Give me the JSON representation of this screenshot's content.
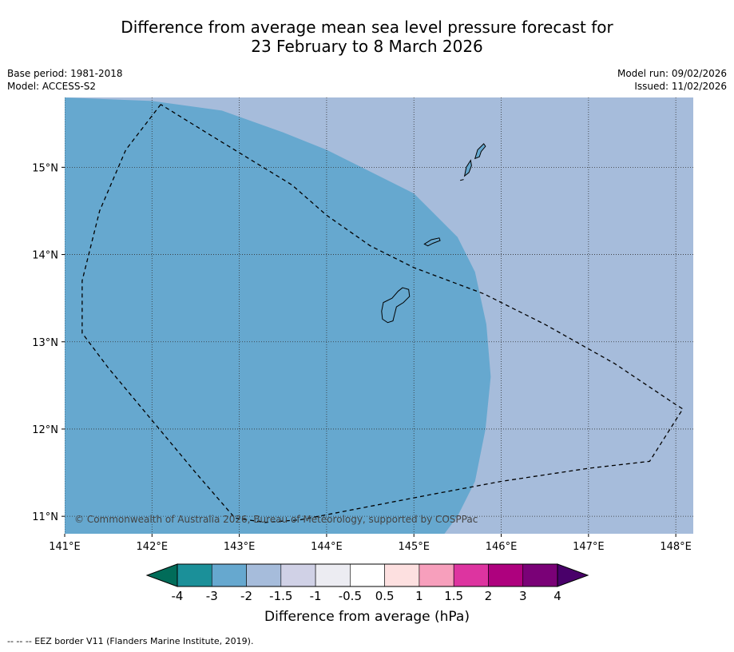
{
  "title_line1": "Difference from average mean sea level pressure forecast for",
  "title_line2": "23 February to 8 March 2026",
  "meta_left": {
    "base_period": "Base period: 1981-2018",
    "model": "Model: ACCESS-S2"
  },
  "meta_right": {
    "model_run": "Model run: 09/02/2026",
    "issued": "Issued: 11/02/2026"
  },
  "copyright": "© Commonwealth of Australia 2026, Bureau of Meteorology, supported by COSPPac",
  "map": {
    "lon_range": [
      141.0,
      148.2
    ],
    "lat_range": [
      10.8,
      15.8
    ],
    "lon_ticks": [
      141,
      142,
      143,
      144,
      145,
      146,
      147,
      148
    ],
    "lon_labels": [
      "141°E",
      "142°E",
      "143°E",
      "144°E",
      "145°E",
      "146°E",
      "147°E",
      "148°E"
    ],
    "lat_ticks": [
      11,
      12,
      13,
      14,
      15
    ],
    "lat_labels": [
      "11°N",
      "12°N",
      "13°N",
      "14°N",
      "15°N"
    ],
    "grid": true,
    "colors": {
      "band_-3_-2": "#66a8cf",
      "band_-2_-1.5": "#a6bcdb"
    },
    "region_minus3_to_minus2_boundary": [
      [
        141.0,
        15.8
      ],
      [
        142.0,
        15.76
      ],
      [
        142.8,
        15.65
      ],
      [
        143.5,
        15.4
      ],
      [
        144.0,
        15.2
      ],
      [
        144.6,
        14.9
      ],
      [
        145.0,
        14.7
      ],
      [
        145.5,
        14.2
      ],
      [
        145.7,
        13.8
      ],
      [
        145.83,
        13.2
      ],
      [
        145.88,
        12.6
      ],
      [
        145.82,
        12.0
      ],
      [
        145.7,
        11.4
      ],
      [
        145.5,
        11.0
      ],
      [
        145.35,
        10.8
      ]
    ],
    "eez_border": [
      [
        142.1,
        15.72
      ],
      [
        141.7,
        15.2
      ],
      [
        141.4,
        14.5
      ],
      [
        141.2,
        13.7
      ],
      [
        141.2,
        13.1
      ],
      [
        141.5,
        12.7
      ],
      [
        142.0,
        12.1
      ],
      [
        142.5,
        11.5
      ],
      [
        142.95,
        10.98
      ],
      [
        143.3,
        10.93
      ],
      [
        143.7,
        10.96
      ],
      [
        145.2,
        11.25
      ],
      [
        146.0,
        11.4
      ],
      [
        147.0,
        11.55
      ],
      [
        147.7,
        11.63
      ],
      [
        148.08,
        12.23
      ],
      [
        148.0,
        12.28
      ],
      [
        147.3,
        12.75
      ],
      [
        146.5,
        13.2
      ],
      [
        145.8,
        13.55
      ],
      [
        145.0,
        13.85
      ],
      [
        144.5,
        14.1
      ],
      [
        144.0,
        14.45
      ],
      [
        143.6,
        14.8
      ],
      [
        142.7,
        15.35
      ],
      [
        142.1,
        15.72
      ]
    ],
    "islands": [
      {
        "name": "Guam",
        "outline": [
          [
            144.65,
            13.45
          ],
          [
            144.75,
            13.5
          ],
          [
            144.82,
            13.58
          ],
          [
            144.87,
            13.62
          ],
          [
            144.94,
            13.6
          ],
          [
            144.95,
            13.52
          ],
          [
            144.88,
            13.45
          ],
          [
            144.8,
            13.4
          ],
          [
            144.78,
            13.32
          ],
          [
            144.76,
            13.24
          ],
          [
            144.7,
            13.22
          ],
          [
            144.64,
            13.26
          ],
          [
            144.63,
            13.35
          ],
          [
            144.65,
            13.45
          ]
        ]
      },
      {
        "name": "Rota",
        "outline": [
          [
            145.12,
            14.12
          ],
          [
            145.2,
            14.17
          ],
          [
            145.29,
            14.19
          ],
          [
            145.3,
            14.16
          ],
          [
            145.22,
            14.13
          ],
          [
            145.16,
            14.1
          ],
          [
            145.12,
            14.12
          ]
        ]
      },
      {
        "name": "Tinian",
        "outline": [
          [
            145.58,
            14.9
          ],
          [
            145.6,
            15.0
          ],
          [
            145.65,
            15.08
          ],
          [
            145.66,
            15.02
          ],
          [
            145.63,
            14.94
          ],
          [
            145.58,
            14.9
          ]
        ]
      },
      {
        "name": "Saipan",
        "outline": [
          [
            145.7,
            15.1
          ],
          [
            145.73,
            15.2
          ],
          [
            145.8,
            15.27
          ],
          [
            145.82,
            15.24
          ],
          [
            145.77,
            15.18
          ],
          [
            145.75,
            15.12
          ],
          [
            145.7,
            15.1
          ]
        ]
      },
      {
        "name": "Aguijan",
        "outline": [
          [
            145.53,
            14.85
          ],
          [
            145.57,
            14.86
          ]
        ]
      }
    ]
  },
  "colorbar": {
    "boundaries": [
      -4,
      -3,
      -2,
      -1.5,
      -1,
      -0.5,
      0.5,
      1,
      1.5,
      2,
      3,
      4
    ],
    "labels": [
      "-4",
      "-3",
      "-2",
      "-1.5",
      "-1",
      "-0.5",
      "0.5",
      "1",
      "1.5",
      "2",
      "3",
      "4"
    ],
    "colors": [
      "#1b9099",
      "#66a8cf",
      "#a6bcdb",
      "#d0d1e6",
      "#ececf2",
      "#ffffff",
      "#fde0e0",
      "#f79fbc",
      "#dd34a0",
      "#ae017e",
      "#7a0177"
    ],
    "extend_low_color": "#016c59",
    "extend_high_color": "#49006a",
    "label": "Difference from average (hPa)"
  },
  "footnote": "--  --  -- EEZ border V11 (Flanders Marine Institute, 2019)."
}
